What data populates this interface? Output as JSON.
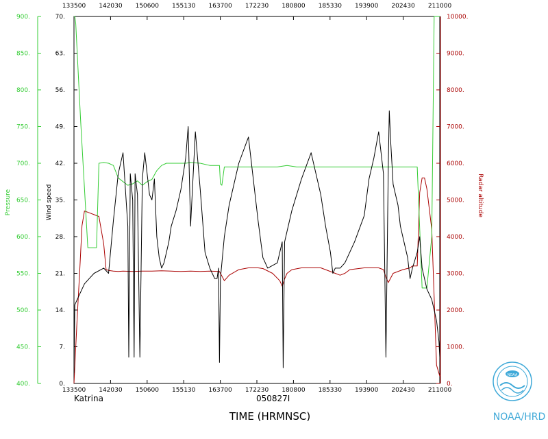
{
  "chart_data": {
    "type": "line",
    "footer_left": "Katrina",
    "footer_center": "050827I",
    "xlabel": "TIME (HRMNSC)",
    "logo_text": "NOAA",
    "org_label": "NOAA/HRD",
    "colors": {
      "wind": "#000000",
      "pressure": "#33cc33",
      "altitude": "#aa0000"
    },
    "x_ticks": [
      "133500",
      "142030",
      "150600",
      "155130",
      "163700",
      "172230",
      "180800",
      "185330",
      "193900",
      "202430",
      "211000"
    ],
    "xlim_hours": [
      13.5833,
      21.1667
    ],
    "y_left": {
      "label": "Wind speed",
      "ticks": [
        "0.",
        "7.",
        "14.",
        "21.",
        "28.",
        "35.",
        "42.",
        "49.",
        "56.",
        "63.",
        "70."
      ],
      "ylim": [
        0,
        70
      ]
    },
    "y_left_outer": {
      "label": "Pressure",
      "ticks": [
        "400.",
        "450.",
        "500.",
        "550.",
        "600.",
        "650.",
        "700.",
        "750.",
        "800.",
        "850.",
        "900."
      ],
      "ylim": [
        400,
        900
      ]
    },
    "y_right": {
      "label": "Radar altitude",
      "ticks": [
        "0.",
        "1000.",
        "2000.",
        "3000.",
        "4000.",
        "5000.",
        "6000.",
        "7000.",
        "8000.",
        "9000.",
        "10000."
      ],
      "ylim": [
        0,
        10000
      ]
    },
    "series": [
      {
        "key": "wind",
        "axis": "left",
        "x": [
          13.5833,
          13.6,
          13.65,
          13.7,
          13.8,
          13.9,
          14.0,
          14.2,
          14.3,
          14.4,
          14.5,
          14.6,
          14.7,
          14.72,
          14.75,
          14.8,
          14.83,
          14.85,
          14.9,
          14.95,
          15.0,
          15.05,
          15.1,
          15.15,
          15.2,
          15.25,
          15.3,
          15.35,
          15.4,
          15.45,
          15.5,
          15.55,
          15.6,
          15.7,
          15.8,
          15.9,
          15.95,
          16.0,
          16.1,
          16.2,
          16.3,
          16.4,
          16.5,
          16.55,
          16.58,
          16.6,
          16.62,
          16.7,
          16.8,
          17.0,
          17.2,
          17.4,
          17.5,
          17.6,
          17.8,
          17.9,
          17.92,
          17.95,
          18.0,
          18.1,
          18.3,
          18.5,
          18.7,
          18.8,
          18.9,
          18.95,
          19.0,
          19.1,
          19.2,
          19.4,
          19.6,
          19.7,
          19.8,
          19.9,
          20.0,
          20.05,
          20.1,
          20.12,
          20.15,
          20.2,
          20.3,
          20.35,
          20.4,
          20.5,
          20.55,
          20.6,
          20.7,
          20.75,
          20.8,
          20.85,
          20.9,
          21.0,
          21.05,
          21.1,
          21.15,
          21.1667
        ],
        "y": [
          2,
          15,
          16,
          17,
          19,
          20,
          21,
          22,
          21,
          31,
          40,
          44,
          30,
          5,
          40,
          35,
          5,
          40,
          36,
          5,
          39,
          44,
          40,
          36,
          35,
          39,
          28,
          24,
          22,
          23,
          25,
          27,
          30,
          33,
          37,
          43,
          49,
          30,
          48,
          37,
          25,
          22,
          20,
          20,
          22,
          4,
          20,
          28,
          34,
          42,
          47,
          31,
          24,
          22,
          23,
          27,
          3,
          27,
          29,
          33,
          39,
          44,
          36,
          30,
          25,
          21,
          22,
          22,
          23,
          27,
          32,
          39,
          43,
          48,
          40,
          5,
          42,
          52,
          46,
          38,
          34,
          30,
          28,
          24,
          20,
          22,
          25,
          28,
          22,
          20,
          18,
          16,
          14,
          12,
          8,
          5
        ]
      },
      {
        "key": "pressure",
        "axis": "left_outer",
        "x": [
          13.5833,
          13.6,
          13.62,
          13.72,
          13.87,
          13.95,
          14.0,
          14.05,
          14.1,
          14.2,
          14.3,
          14.4,
          14.5,
          14.6,
          14.7,
          14.8,
          14.9,
          15.0,
          15.1,
          15.2,
          15.3,
          15.4,
          15.5,
          15.6,
          15.7,
          15.8,
          15.9,
          16.0,
          16.2,
          16.4,
          16.6,
          16.62,
          16.65,
          16.7,
          16.8,
          17.0,
          17.3,
          17.6,
          17.8,
          18.0,
          18.2,
          18.5,
          18.7,
          18.9,
          19.0,
          19.3,
          19.5,
          19.8,
          20.0,
          20.1,
          20.2,
          20.25,
          20.3,
          20.35,
          20.4,
          20.45,
          20.5,
          20.55,
          20.6,
          20.7,
          20.8,
          20.9,
          21.0,
          21.05,
          21.1667
        ],
        "y": [
          900,
          900,
          890,
          760,
          585,
          585,
          585,
          585,
          700,
          701,
          700,
          697,
          680,
          675,
          670,
          672,
          676,
          670,
          675,
          678,
          690,
          697,
          700,
          700,
          700,
          700,
          700,
          701,
          700,
          697,
          697,
          672,
          670,
          695,
          695,
          695,
          695,
          695,
          695,
          697,
          695,
          695,
          695,
          695,
          695,
          695,
          695,
          695,
          695,
          695,
          695,
          695,
          695,
          695,
          695,
          695,
          695,
          695,
          695,
          695,
          530,
          530,
          600,
          900,
          900
        ]
      },
      {
        "key": "altitude",
        "axis": "right",
        "x": [
          13.5833,
          13.65,
          13.7,
          13.75,
          13.8,
          13.9,
          14.0,
          14.1,
          14.2,
          14.25,
          14.3,
          14.4,
          14.5,
          14.6,
          14.8,
          15.0,
          15.2,
          15.4,
          15.6,
          15.8,
          16.0,
          16.2,
          16.4,
          16.6,
          16.62,
          16.7,
          16.8,
          17.0,
          17.2,
          17.4,
          17.5,
          17.7,
          17.85,
          17.9,
          17.95,
          18.0,
          18.1,
          18.3,
          18.5,
          18.7,
          18.8,
          19.0,
          19.1,
          19.2,
          19.3,
          19.6,
          19.9,
          20.0,
          20.05,
          20.1,
          20.2,
          20.4,
          20.55,
          20.6,
          20.7,
          20.75,
          20.8,
          20.85,
          20.9,
          21.0,
          21.1,
          21.1667
        ],
        "y": [
          0,
          1800,
          3000,
          4300,
          4700,
          4650,
          4600,
          4550,
          3800,
          3100,
          3080,
          3060,
          3050,
          3060,
          3050,
          3060,
          3060,
          3070,
          3060,
          3050,
          3060,
          3050,
          3060,
          3050,
          3000,
          2800,
          2950,
          3100,
          3150,
          3150,
          3130,
          3000,
          2800,
          2650,
          2850,
          3000,
          3100,
          3150,
          3150,
          3150,
          3100,
          3000,
          2950,
          3000,
          3100,
          3150,
          3150,
          3100,
          2900,
          2750,
          3000,
          3100,
          3150,
          3200,
          3200,
          5200,
          5600,
          5600,
          5300,
          4200,
          500,
          200
        ]
      }
    ]
  }
}
